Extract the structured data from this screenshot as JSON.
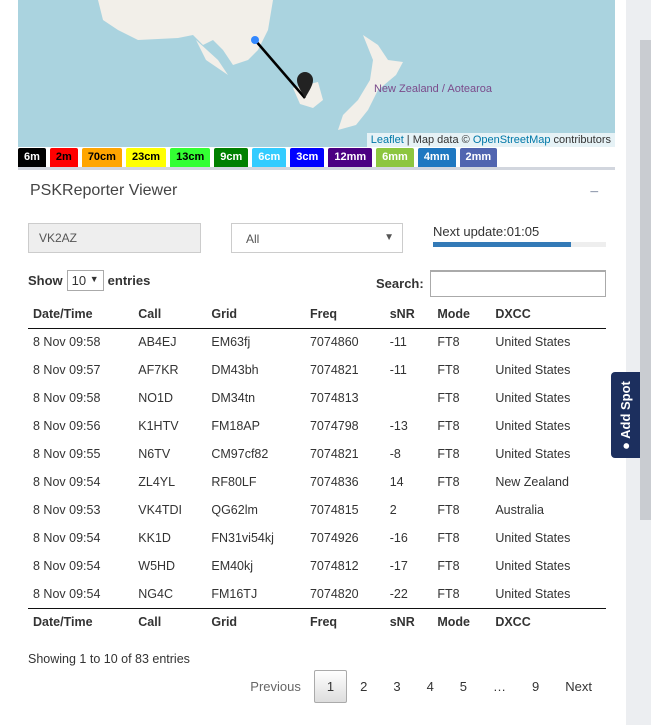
{
  "map": {
    "label": "New Zealand / Aotearoa",
    "attr_leaflet": "Leaflet",
    "attr_mid": " | Map data © ",
    "attr_osm": "OpenStreetMap",
    "attr_end": " contributors"
  },
  "bands": [
    {
      "label": "6m",
      "color": "#000000",
      "text": "#ffffff"
    },
    {
      "label": "2m",
      "color": "#ff0000",
      "text": "#000000"
    },
    {
      "label": "70cm",
      "color": "#ffa500",
      "text": "#000000"
    },
    {
      "label": "23cm",
      "color": "#ffff00",
      "text": "#000000"
    },
    {
      "label": "13cm",
      "color": "#33ff33",
      "text": "#000000"
    },
    {
      "label": "9cm",
      "color": "#008000",
      "text": "#ffffff"
    },
    {
      "label": "6cm",
      "color": "#33ccff",
      "text": "#ffffff"
    },
    {
      "label": "3cm",
      "color": "#0000ff",
      "text": "#ffffff"
    },
    {
      "label": "12mm",
      "color": "#4b0082",
      "text": "#ffffff"
    },
    {
      "label": "6mm",
      "color": "#8dc63f",
      "text": "#ffffff"
    },
    {
      "label": "4mm",
      "color": "#1f78c1",
      "text": "#ffffff"
    },
    {
      "label": "2mm",
      "color": "#5165b0",
      "text": "#ffffff"
    }
  ],
  "panel": {
    "title": "PSKReporter Viewer",
    "collapse": "−",
    "callsign": "VK2AZ",
    "filter": "All",
    "next_update": "Next update:01:05",
    "progress_percent": 80
  },
  "table": {
    "show": "Show",
    "length": "10",
    "entries": "entries",
    "search_label": "Search:",
    "columns": [
      "Date/Time",
      "Call",
      "Grid",
      "Freq",
      "sNR",
      "Mode",
      "DXCC"
    ],
    "rows": [
      [
        "8 Nov 09:58",
        "AB4EJ",
        "EM63fj",
        "7074860",
        "-11",
        "FT8",
        "United States"
      ],
      [
        "8 Nov 09:57",
        "AF7KR",
        "DM43bh",
        "7074821",
        "-11",
        "FT8",
        "United States"
      ],
      [
        "8 Nov 09:58",
        "NO1D",
        "DM34tn",
        "7074813",
        "",
        "FT8",
        "United States"
      ],
      [
        "8 Nov 09:56",
        "K1HTV",
        "FM18AP",
        "7074798",
        "-13",
        "FT8",
        "United States"
      ],
      [
        "8 Nov 09:55",
        "N6TV",
        "CM97cf82",
        "7074821",
        "-8",
        "FT8",
        "United States"
      ],
      [
        "8 Nov 09:54",
        "ZL4YL",
        "RF80LF",
        "7074836",
        "14",
        "FT8",
        "New Zealand"
      ],
      [
        "8 Nov 09:53",
        "VK4TDI",
        "QG62lm",
        "7074815",
        "2",
        "FT8",
        "Australia"
      ],
      [
        "8 Nov 09:54",
        "KK1D",
        "FN31vi54kj",
        "7074926",
        "-16",
        "FT8",
        "United States"
      ],
      [
        "8 Nov 09:54",
        "W5HD",
        "EM40kj",
        "7074812",
        "-17",
        "FT8",
        "United States"
      ],
      [
        "8 Nov 09:54",
        "NG4C",
        "FM16TJ",
        "7074820",
        "-22",
        "FT8",
        "United States"
      ]
    ],
    "info": "Showing 1 to 10 of 83 entries",
    "pager": [
      "Previous",
      "1",
      "2",
      "3",
      "4",
      "5",
      "…",
      "9",
      "Next"
    ]
  },
  "add_spot": "Add Spot"
}
